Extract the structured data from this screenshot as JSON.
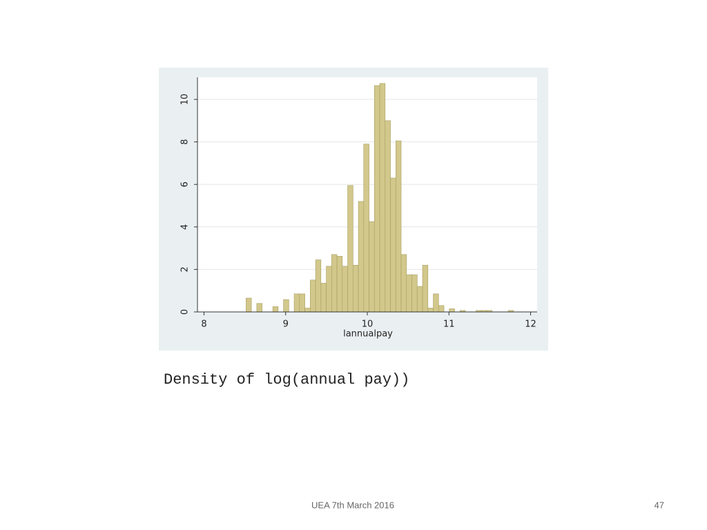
{
  "chart_data": {
    "type": "histogram",
    "x_label": "lannualpay",
    "bins": [
      8.515,
      8.5805,
      8.646,
      8.7115,
      8.777,
      8.8425,
      8.908,
      8.9735,
      9.039,
      9.1045,
      9.17,
      9.2355,
      9.301,
      9.3665,
      9.432,
      9.4975,
      9.563,
      9.6285,
      9.694,
      9.7595,
      9.825,
      9.8905,
      9.956,
      10.0215,
      10.087,
      10.1525,
      10.218,
      10.2835,
      10.349,
      10.4145,
      10.48,
      10.5455,
      10.611,
      10.6765,
      10.742,
      10.8075,
      10.873,
      10.9385,
      11.004,
      11.0695,
      11.135,
      11.2005,
      11.266,
      11.3315,
      11.397,
      11.4625,
      11.528,
      11.5935,
      11.659,
      11.7245,
      11.79
    ],
    "values": [
      0.65,
      0,
      0.4,
      0,
      0,
      0.25,
      0,
      0.58,
      0,
      0.85,
      0.85,
      0.18,
      1.5,
      2.45,
      1.35,
      2.15,
      2.7,
      2.62,
      2.15,
      5.95,
      2.2,
      5.2,
      7.9,
      4.25,
      10.65,
      10.75,
      9.0,
      6.3,
      8.05,
      2.7,
      1.75,
      1.75,
      1.2,
      2.2,
      0.18,
      0.85,
      0.3,
      0,
      0.15,
      0,
      0.07,
      0,
      0,
      0.07,
      0.07,
      0.07,
      0,
      0,
      0,
      0.07
    ],
    "color": "#d2c88c",
    "edge_color": "#a89d60",
    "xlim": [
      7.92,
      12.08
    ],
    "xticks": [
      8,
      9,
      10,
      11,
      12
    ],
    "ylim": [
      0,
      11.04
    ],
    "yticks": [
      0,
      2,
      4,
      6,
      8,
      10
    ],
    "grid": true
  },
  "slide": {
    "caption": "Density of log(annual pay))",
    "footer": "UEA 7th March 2016",
    "page_number": 47
  }
}
